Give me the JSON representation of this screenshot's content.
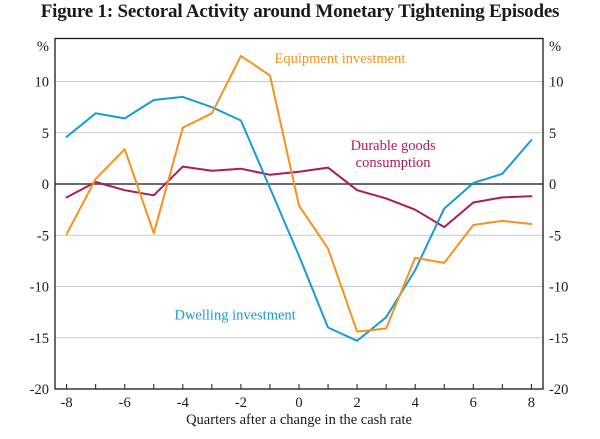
{
  "title": "Figure 1: Sectoral Activity around Monetary Tightening Episodes",
  "chart_data": {
    "type": "line",
    "title": "Figure 1: Sectoral Activity around Monetary Tightening Episodes",
    "xlabel": "Quarters after a change in the cash rate",
    "y_axis_unit": "%",
    "xlim": [
      -8.4,
      8.4
    ],
    "ylim": [
      -20,
      14.2
    ],
    "grid": "horizontal",
    "legend_position": "inline-annotations",
    "x": [
      -8,
      -7,
      -6,
      -5,
      -4,
      -3,
      -2,
      -1,
      0,
      1,
      2,
      3,
      4,
      5,
      6,
      7,
      8
    ],
    "x_tick_labels": [
      "-8",
      "-6",
      "-4",
      "-2",
      "0",
      "2",
      "4",
      "6",
      "8"
    ],
    "x_minor_ticks": [
      -8,
      -7,
      -6,
      -5,
      -4,
      -3,
      -2,
      -1,
      0,
      1,
      2,
      3,
      4,
      5,
      6,
      7,
      8
    ],
    "y_tick_labels": [
      "10",
      "5",
      "0",
      "-5",
      "-10",
      "-15",
      "-20"
    ],
    "y_tick_values": [
      10,
      5,
      0,
      -5,
      -10,
      -15,
      -20
    ],
    "y_gridlines": [
      10,
      5,
      -5,
      -10,
      -15
    ],
    "zero_line": 0,
    "series": [
      {
        "name": "Durable goods consumption",
        "color": "#ad1a5c",
        "values": [
          -1.3,
          0.2,
          -0.6,
          -1.1,
          1.7,
          1.3,
          1.5,
          0.9,
          1.2,
          1.6,
          -0.6,
          -1.4,
          -2.5,
          -4.2,
          -1.8,
          -1.3,
          -1.2
        ]
      },
      {
        "name": "Dwelling investment",
        "color": "#189bd7",
        "values": [
          4.6,
          6.9,
          6.4,
          8.2,
          8.5,
          7.5,
          6.2,
          -0.4,
          -7.0,
          -14.0,
          -15.3,
          -13.0,
          -8.4,
          -2.4,
          0.1,
          1.0,
          4.3
        ]
      },
      {
        "name": "Equipment investment",
        "color": "#f6921e",
        "values": [
          -4.9,
          0.5,
          3.4,
          -4.8,
          5.5,
          6.9,
          12.5,
          10.6,
          -2.1,
          -6.3,
          -14.4,
          -14.1,
          -7.2,
          -7.7,
          -4.0,
          -3.6,
          -3.9
        ]
      }
    ],
    "annotations": [
      {
        "lines": [
          "Equipment investment"
        ],
        "x": 1.41,
        "y": 11.8,
        "color": "#f6921e"
      },
      {
        "lines": [
          "Durable goods",
          "consumption"
        ],
        "x": 3.24,
        "y": 3.3,
        "color": "#ad1a5c"
      },
      {
        "lines": [
          "Dwelling investment"
        ],
        "x": -2.2,
        "y": -13.2,
        "color": "#189bd7"
      }
    ],
    "colors": {
      "grid": "#c8c9ca",
      "zero_line": "#55565a",
      "frame": "#1a1a1a",
      "text": "#1a1a1a"
    }
  }
}
